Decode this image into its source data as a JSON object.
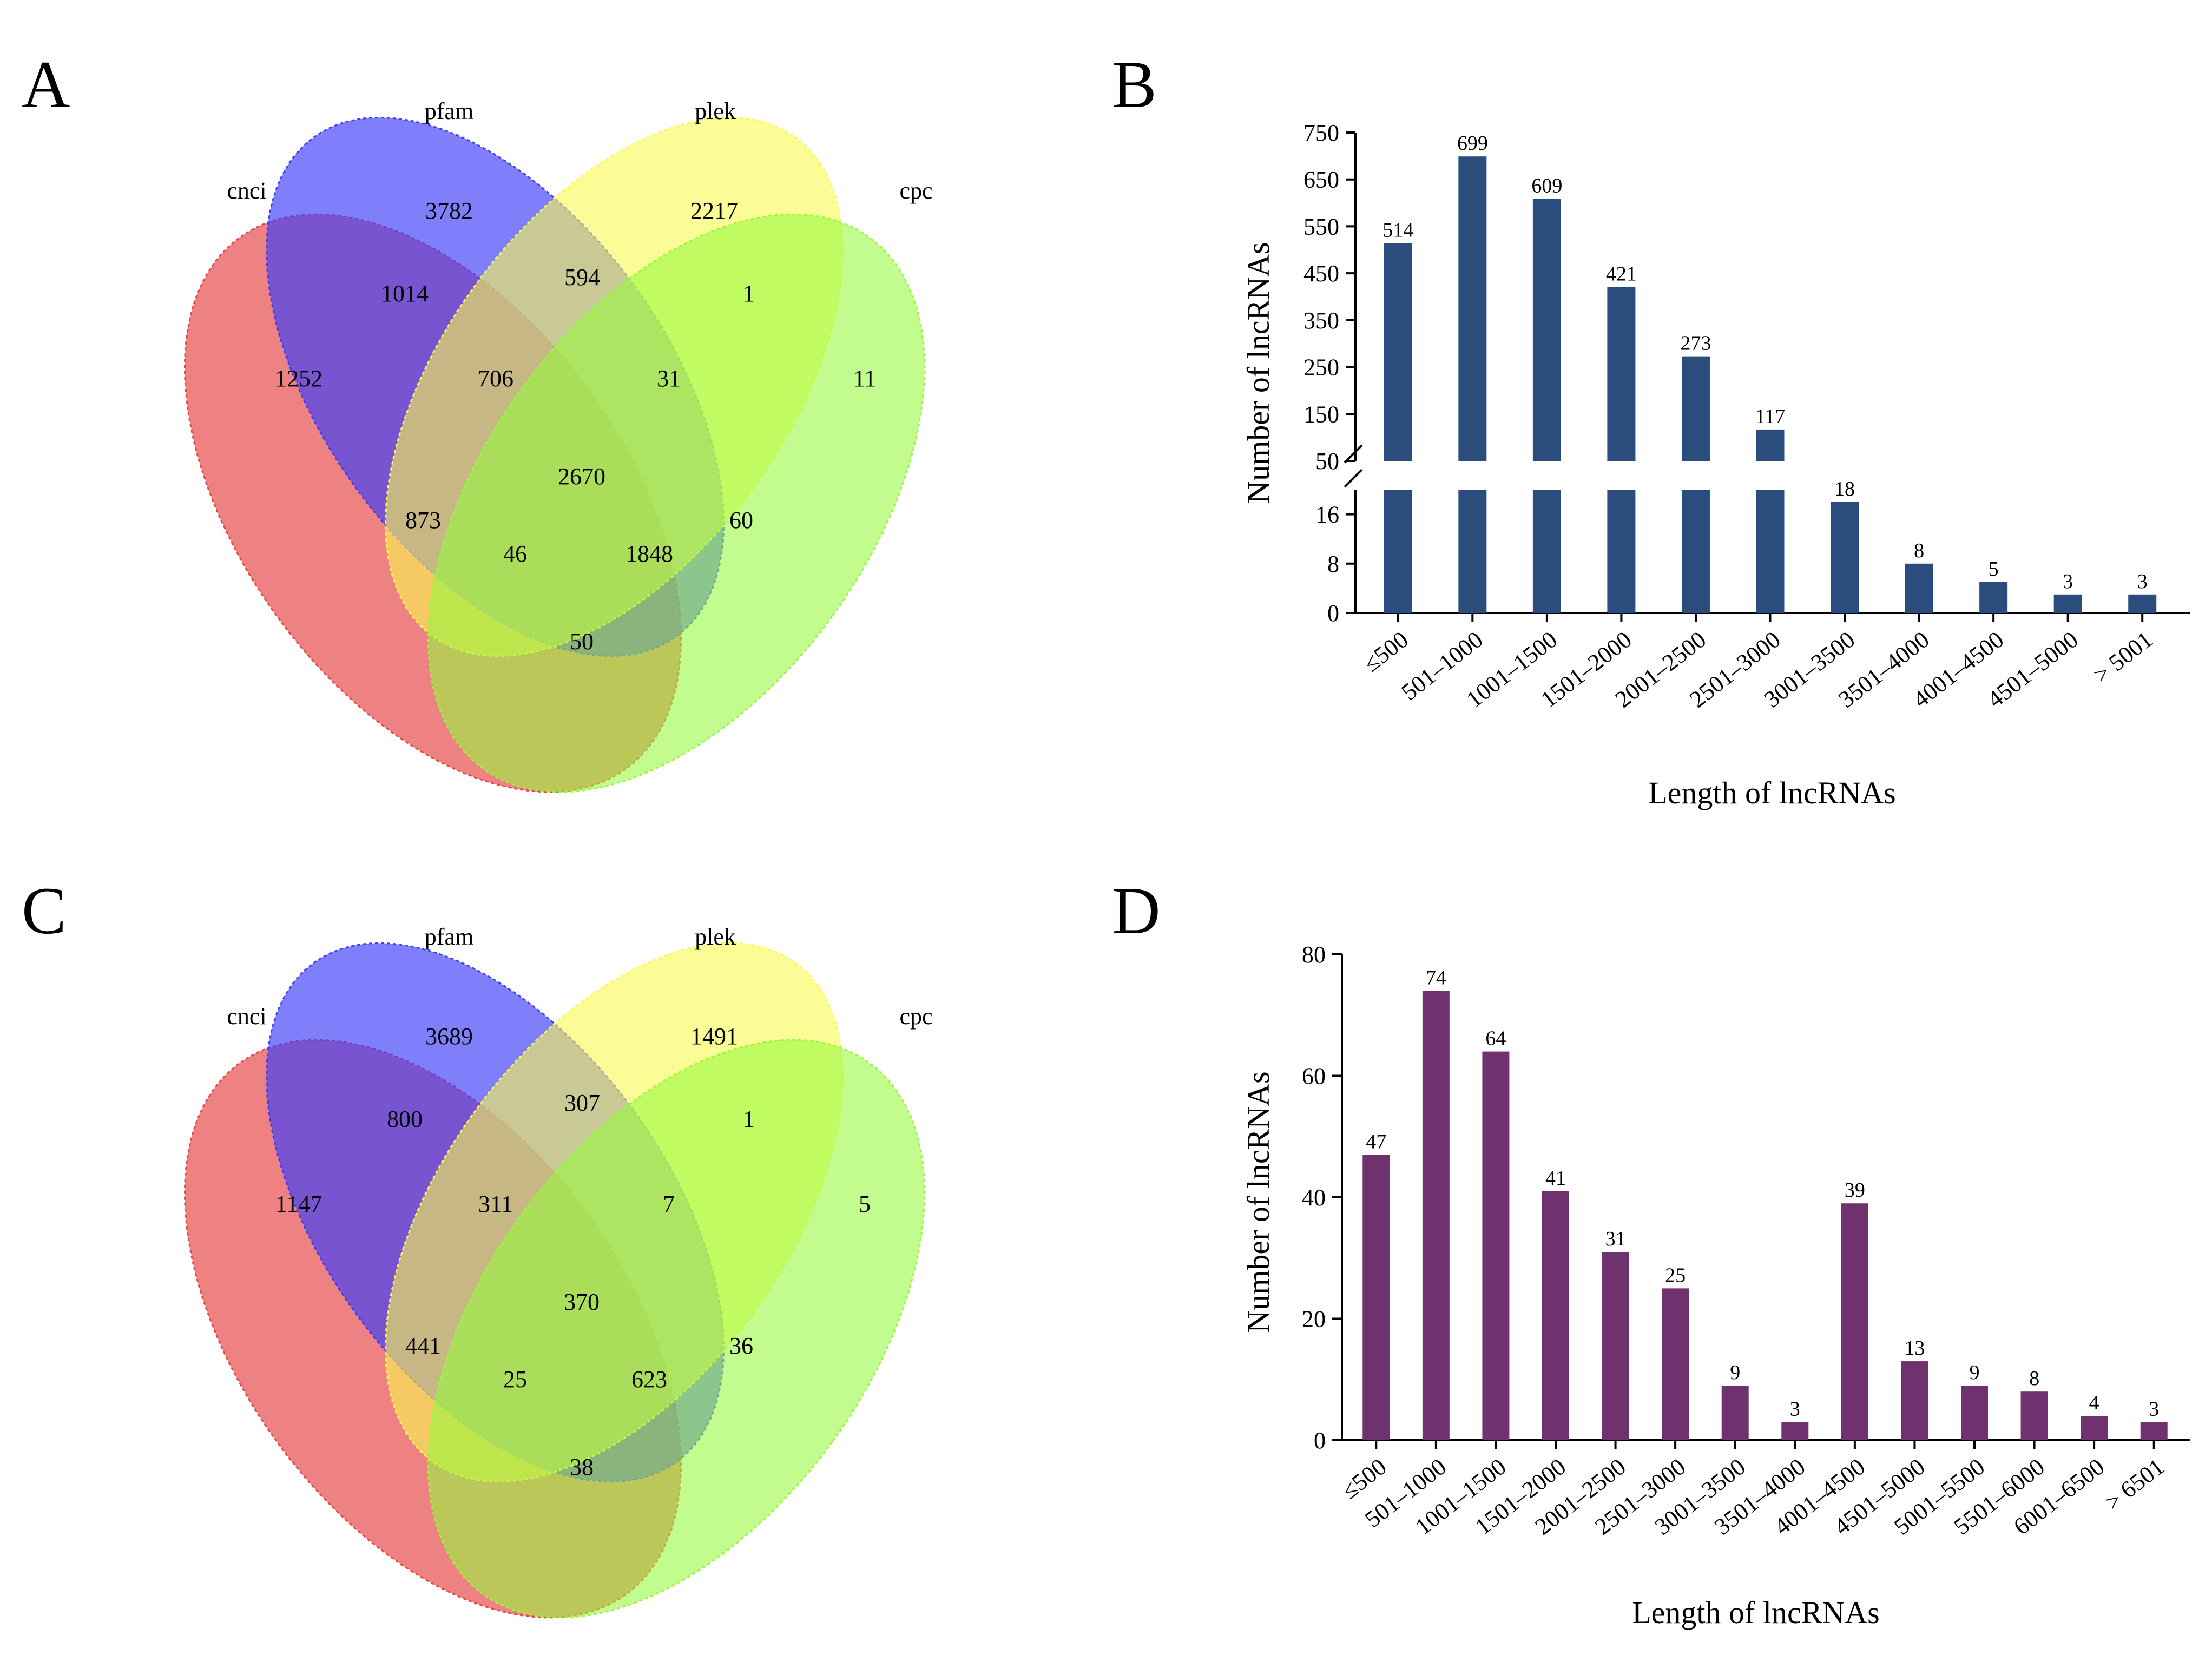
{
  "colors": {
    "cnci": "#e64646",
    "pfam": "#3c3cfa",
    "plek": "#fafa50",
    "cpc": "#96fa3c",
    "bars_B": "#2b4d7e",
    "bars_D": "#70326e"
  },
  "panels": {
    "A": {
      "letter": "A"
    },
    "B": {
      "letter": "B"
    },
    "C": {
      "letter": "C"
    },
    "D": {
      "letter": "D"
    }
  },
  "chart_data": [
    {
      "id": "A",
      "type": "venn",
      "sets": [
        "cnci",
        "pfam",
        "plek",
        "cpc"
      ],
      "labels": {
        "cnci": "cnci",
        "pfam": "pfam",
        "plek": "plek",
        "cpc": "cpc"
      },
      "regions": {
        "cnci_only": "1252",
        "pfam_only": "3782",
        "plek_only": "2217",
        "cpc_only": "11",
        "cnci_pfam": "1014",
        "pfam_plek": "594",
        "plek_cpc": "1",
        "cnci_pfam_plek": "706",
        "pfam_plek_cpc": "31",
        "all_four": "2670",
        "cnci_plek": "873",
        "pfam_cpc": "60",
        "cnci_plek_cpc": "46",
        "cnci_pfam_cpc": "1848",
        "cnci_cpc": "50"
      }
    },
    {
      "id": "B",
      "type": "bar",
      "categories": [
        "≤500",
        "501–1000",
        "1001–1500",
        "1501–2000",
        "2001–2500",
        "2501–3000",
        "3001–3500",
        "3501–4000",
        "4001–4500",
        "4501–5000",
        "> 5001"
      ],
      "values": [
        514,
        699,
        609,
        421,
        273,
        117,
        18,
        8,
        5,
        3,
        3
      ],
      "axis_break": {
        "lower_range": [
          0,
          20
        ],
        "upper_range": [
          50,
          750
        ]
      },
      "lower_ticks": [
        "0",
        "8",
        "16"
      ],
      "upper_ticks": [
        "50",
        "150",
        "250",
        "350",
        "450",
        "550",
        "650",
        "750"
      ],
      "xlabel": "Length of lncRNAs",
      "ylabel": "Number of lncRNAs"
    },
    {
      "id": "C",
      "type": "venn",
      "sets": [
        "cnci",
        "pfam",
        "plek",
        "cpc"
      ],
      "labels": {
        "cnci": "cnci",
        "pfam": "pfam",
        "plek": "plek",
        "cpc": "cpc"
      },
      "regions": {
        "cnci_only": "1147",
        "pfam_only": "3689",
        "plek_only": "1491",
        "cpc_only": "5",
        "cnci_pfam": "800",
        "pfam_plek": "307",
        "plek_cpc": "1",
        "cnci_pfam_plek": "311",
        "pfam_plek_cpc": "7",
        "all_four": "370",
        "cnci_plek": "441",
        "pfam_cpc": "36",
        "cnci_plek_cpc": "25",
        "cnci_pfam_cpc": "623",
        "cnci_cpc": "38"
      }
    },
    {
      "id": "D",
      "type": "bar",
      "categories": [
        "≤500",
        "501–1000",
        "1001–1500",
        "1501–2000",
        "2001–2500",
        "2501–3000",
        "3001–3500",
        "3501–4000",
        "4001–4500",
        "4501–5000",
        "5001–5500",
        "5501–6000",
        "6001–6500",
        "> 6501"
      ],
      "values": [
        47,
        74,
        64,
        41,
        31,
        25,
        9,
        3,
        39,
        13,
        9,
        8,
        4,
        3
      ],
      "ylim": [
        0,
        80
      ],
      "yticks": [
        "0",
        "20",
        "40",
        "60",
        "80"
      ],
      "xlabel": "Length of lncRNAs",
      "ylabel": "Number of lncRNAs"
    }
  ]
}
